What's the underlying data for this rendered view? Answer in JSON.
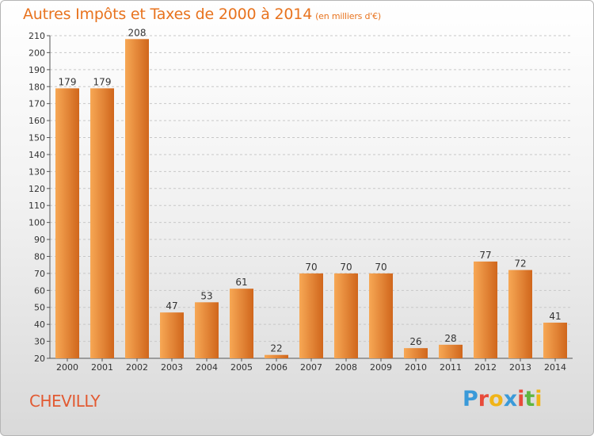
{
  "title": "Autres Impôts et Taxes de 2000 à 2014",
  "subtitle": "(en milliers d'€)",
  "commune": "CHEVILLY",
  "logo": {
    "text": "Proxiti",
    "colors": [
      "#3a9ad9",
      "#e84b3a",
      "#f0b418",
      "#3a9ad9",
      "#e84b3a",
      "#5fb540",
      "#f0b418"
    ]
  },
  "colors": {
    "bar_light": "#f7a855",
    "bar_dark": "#d0661c",
    "title": "#e8731e",
    "commune": "#e25a32"
  },
  "chart_data": {
    "type": "bar",
    "title": "Autres Impôts et Taxes de 2000 à 2014",
    "subtitle": "(en milliers d'€)",
    "categories": [
      "2000",
      "2001",
      "2002",
      "2003",
      "2004",
      "2005",
      "2006",
      "2007",
      "2008",
      "2009",
      "2010",
      "2011",
      "2012",
      "2013",
      "2014"
    ],
    "values": [
      179,
      179,
      208,
      47,
      53,
      61,
      22,
      70,
      70,
      70,
      26,
      28,
      77,
      72,
      41
    ],
    "ylim": [
      20,
      210
    ],
    "yticks": [
      20,
      30,
      40,
      50,
      60,
      70,
      80,
      90,
      100,
      110,
      120,
      130,
      140,
      150,
      160,
      170,
      180,
      190,
      200,
      210
    ],
    "grid": true,
    "data_labels": true
  }
}
